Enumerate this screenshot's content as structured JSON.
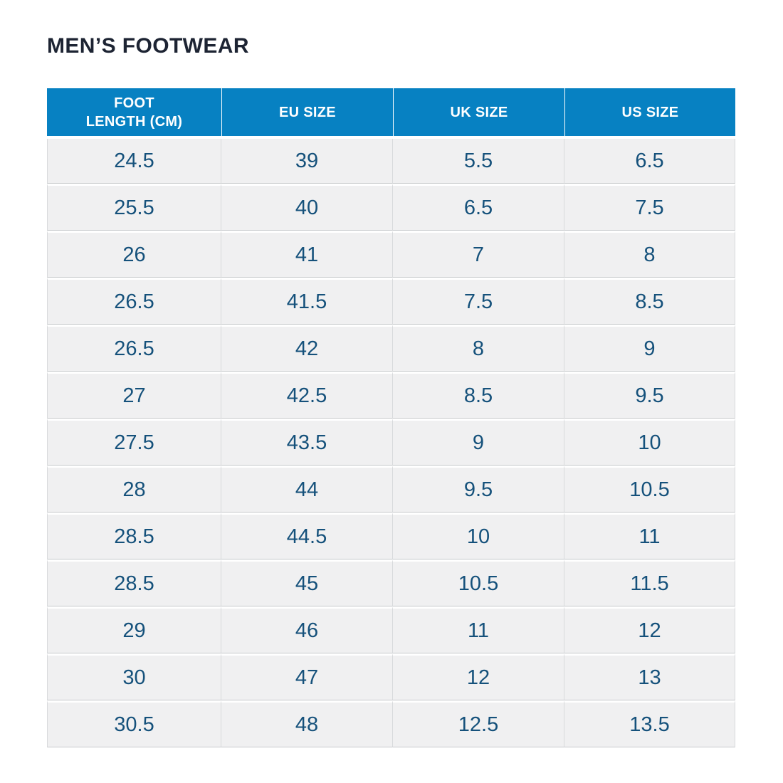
{
  "page": {
    "title": "MEN’S FOOTWEAR",
    "background": "#ffffff"
  },
  "colors": {
    "header_bg": "#0781c2",
    "header_text": "#ffffff",
    "cell_bg": "#f0f0f1",
    "cell_text": "#15517b",
    "title_text": "#1d2433",
    "row_divider": "#c6c9cb",
    "column_divider": "#d8dadc"
  },
  "header_display_lines": [
    [
      "FOOT",
      "LENGTH (CM)"
    ],
    [
      "EU SIZE"
    ],
    [
      "UK SIZE"
    ],
    [
      "US SIZE"
    ]
  ],
  "chart_data": {
    "type": "table",
    "title": "MEN’S FOOTWEAR",
    "columns": [
      "FOOT LENGTH (CM)",
      "EU SIZE",
      "UK SIZE",
      "US SIZE"
    ],
    "rows": [
      [
        "24.5",
        "39",
        "5.5",
        "6.5"
      ],
      [
        "25.5",
        "40",
        "6.5",
        "7.5"
      ],
      [
        "26",
        "41",
        "7",
        "8"
      ],
      [
        "26.5",
        "41.5",
        "7.5",
        "8.5"
      ],
      [
        "26.5",
        "42",
        "8",
        "9"
      ],
      [
        "27",
        "42.5",
        "8.5",
        "9.5"
      ],
      [
        "27.5",
        "43.5",
        "9",
        "10"
      ],
      [
        "28",
        "44",
        "9.5",
        "10.5"
      ],
      [
        "28.5",
        "44.5",
        "10",
        "11"
      ],
      [
        "28.5",
        "45",
        "10.5",
        "11.5"
      ],
      [
        "29",
        "46",
        "11",
        "12"
      ],
      [
        "30",
        "47",
        "12",
        "13"
      ],
      [
        "30.5",
        "48",
        "12.5",
        "13.5"
      ]
    ]
  }
}
